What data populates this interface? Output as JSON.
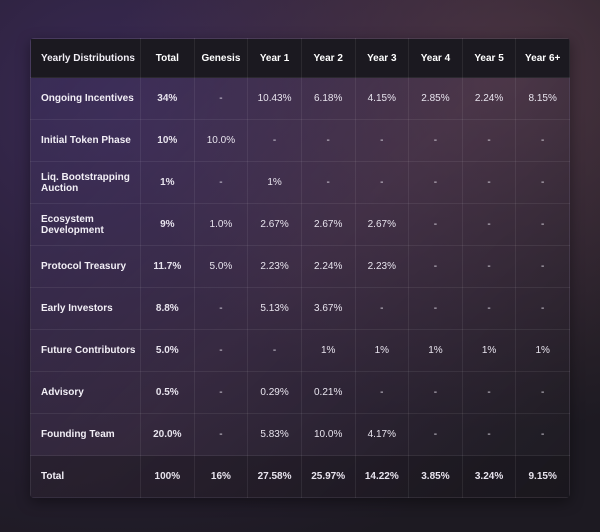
{
  "headers": [
    "Yearly Distributions",
    "Total",
    "Genesis",
    "Year 1",
    "Year 2",
    "Year 3",
    "Year 4",
    "Year 5",
    "Year 6+"
  ],
  "rows": [
    [
      "Ongoing Incentives",
      "34%",
      "-",
      "10.43%",
      "6.18%",
      "4.15%",
      "2.85%",
      "2.24%",
      "8.15%"
    ],
    [
      "Initial Token Phase",
      "10%",
      "10.0%",
      "-",
      "-",
      "-",
      "-",
      "-",
      "-"
    ],
    [
      "Liq. Bootstrapping Auction",
      "1%",
      "-",
      "1%",
      "-",
      "-",
      "-",
      "-",
      "-"
    ],
    [
      "Ecosystem Development",
      "9%",
      "1.0%",
      "2.67%",
      "2.67%",
      "2.67%",
      "-",
      "-",
      "-"
    ],
    [
      "Protocol Treasury",
      "11.7%",
      "5.0%",
      "2.23%",
      "2.24%",
      "2.23%",
      "-",
      "-",
      "-"
    ],
    [
      "Early Investors",
      "8.8%",
      "-",
      "5.13%",
      "3.67%",
      "-",
      "-",
      "-",
      "-"
    ],
    [
      "Future Contributors",
      "5.0%",
      "-",
      "-",
      "1%",
      "1%",
      "1%",
      "1%",
      "1%"
    ],
    [
      "Advisory",
      "0.5%",
      "-",
      "0.29%",
      "0.21%",
      "-",
      "-",
      "-",
      "-"
    ],
    [
      "Founding Team",
      "20.0%",
      "-",
      "5.83%",
      "10.0%",
      "4.17%",
      "-",
      "-",
      "-"
    ],
    [
      "Total",
      "100%",
      "16%",
      "27.58%",
      "25.97%",
      "14.22%",
      "3.85%",
      "3.24%",
      "9.15%"
    ]
  ]
}
